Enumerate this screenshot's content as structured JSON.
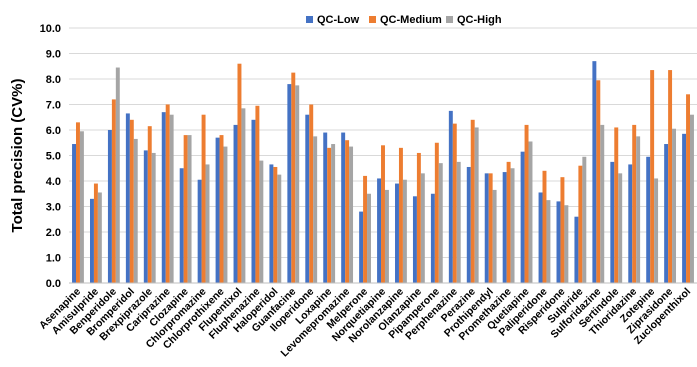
{
  "chart_data": {
    "type": "bar",
    "ylabel": "Total precision (CV%)",
    "ylim": [
      0,
      10
    ],
    "yticks": [
      "0.0",
      "1.0",
      "2.0",
      "3.0",
      "4.0",
      "5.0",
      "6.0",
      "7.0",
      "8.0",
      "9.0",
      "10.0"
    ],
    "grid": true,
    "legend_position": "top-right",
    "categories": [
      "Asenapine",
      "Amisulpride",
      "Benperidole",
      "Bromperidol",
      "Brexpiprazole",
      "Cariprazine",
      "Clozapine",
      "Chlorpromazine",
      "Chlorprothixene",
      "Flupentixol",
      "Fluphenazine",
      "Haloperidol",
      "Guanfacine",
      "Iloperidone",
      "Loxapine",
      "Levomepromazine",
      "Melperone",
      "Norquetiapine",
      "Norolanzapine",
      "Olanzapine",
      "Pipamperone",
      "Perphenazine",
      "Perazine",
      "Prothipendyl",
      "Promethazine",
      "Quetiapine",
      "Paliperidone",
      "Risperidone",
      "Sulpiride",
      "Sulforidazine",
      "Sertindole",
      "Thioridazine",
      "Zotepine",
      "Ziprasidone",
      "Zuclopenthixol"
    ],
    "series": [
      {
        "name": "QC-Low",
        "color": "#4472C4",
        "values": [
          5.45,
          3.3,
          6.0,
          6.65,
          5.2,
          6.7,
          4.5,
          4.05,
          5.7,
          6.2,
          6.4,
          4.65,
          7.8,
          6.6,
          5.9,
          5.9,
          2.8,
          4.1,
          3.9,
          3.4,
          3.5,
          6.75,
          4.55,
          4.3,
          4.35,
          5.15,
          3.55,
          3.2,
          2.6,
          8.7,
          4.75,
          4.65,
          4.95,
          5.45,
          5.85
        ]
      },
      {
        "name": "QC-Medium",
        "color": "#ED7D31",
        "values": [
          6.3,
          3.9,
          7.2,
          6.4,
          6.15,
          7.0,
          5.8,
          6.6,
          5.8,
          8.6,
          6.95,
          4.55,
          8.25,
          7.0,
          5.3,
          5.6,
          4.2,
          5.4,
          5.3,
          5.1,
          5.5,
          6.25,
          6.4,
          4.3,
          4.75,
          6.2,
          4.4,
          4.15,
          4.6,
          7.95,
          6.1,
          6.2,
          8.35,
          8.35,
          7.4
        ]
      },
      {
        "name": "QC-High",
        "color": "#A5A5A5",
        "values": [
          5.95,
          3.55,
          8.45,
          5.65,
          5.1,
          6.6,
          5.8,
          4.65,
          5.35,
          6.85,
          4.8,
          4.25,
          7.75,
          5.75,
          5.45,
          5.35,
          3.5,
          3.65,
          4.05,
          4.3,
          4.7,
          4.75,
          6.1,
          3.65,
          4.5,
          5.55,
          3.25,
          3.05,
          4.95,
          6.2,
          4.3,
          5.75,
          4.1,
          6.05,
          6.6
        ]
      }
    ]
  }
}
